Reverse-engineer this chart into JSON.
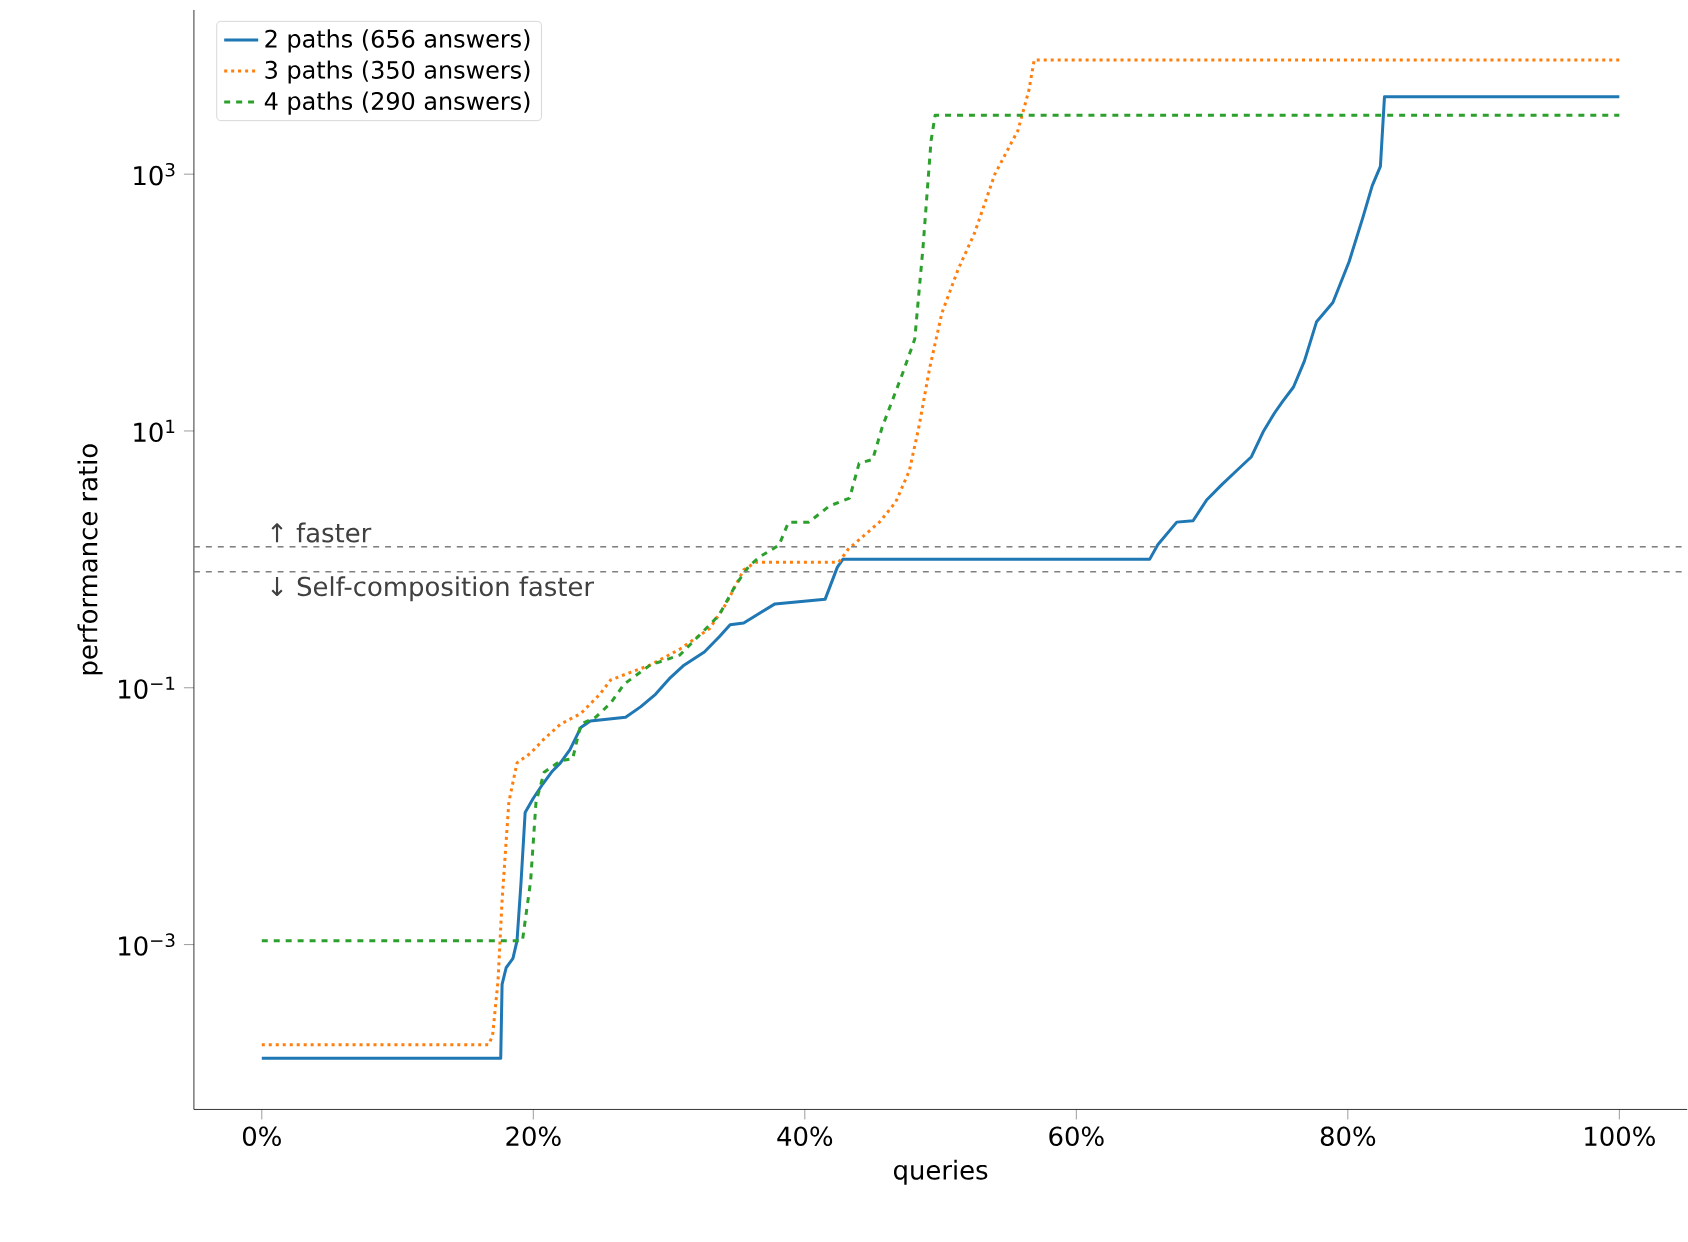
{
  "chart_data": {
    "type": "line",
    "xlabel": "queries",
    "ylabel": "performance ratio",
    "log": "y",
    "legend": "top left",
    "marker": "none",
    "xlim": [
      -5,
      105
    ],
    "ylim": [
      5.2e-05,
      19000
    ],
    "xticks": [
      {
        "value": 0,
        "label": "0%"
      },
      {
        "value": 20,
        "label": "20%"
      },
      {
        "value": 40,
        "label": "40%"
      },
      {
        "value": 60,
        "label": "60%"
      },
      {
        "value": 80,
        "label": "80%"
      },
      {
        "value": 100,
        "label": "100%"
      }
    ],
    "yticks": [
      {
        "value": 0.001,
        "label": "10$^{−3}$"
      },
      {
        "value": 0.1,
        "label": "10$^{−1}$"
      },
      {
        "value": 10,
        "label": "10$^{1}$"
      },
      {
        "value": 1000,
        "label": "10$^{3}$"
      }
    ],
    "ref_lines": [
      {
        "axis": "y",
        "value": 1.25,
        "label": "↑ faster",
        "color": "#808080",
        "line_style": "dashed"
      },
      {
        "axis": "y",
        "value": 0.8,
        "label": "↓ Self-composition faster",
        "color": "#808080",
        "line_style": "dashed"
      }
    ],
    "series": [
      {
        "name": "2 paths (656 answers)",
        "color": "#1f77b4",
        "line_style": "solid",
        "x": [
          0,
          17.6,
          17.7,
          18.0,
          18.5,
          18.8,
          19.1,
          19.4,
          20.0,
          20.7,
          21.4,
          22.0,
          22.7,
          23.5,
          24.2,
          24.9,
          26.8,
          27.9,
          29.0,
          30.1,
          31.1,
          32.6,
          33.7,
          34.5,
          35.5,
          37.8,
          41.5,
          42.4,
          42.8,
          65.4,
          66.0,
          67.4,
          68.6,
          69.6,
          70.7,
          71.8,
          72.9,
          73.8,
          74.6,
          75.2,
          76.0,
          76.8,
          77.7,
          78.9,
          80.1,
          81.1,
          81.8,
          82.4,
          82.7,
          100
        ],
        "values": [
          0.00013,
          0.00013,
          0.00049,
          0.00066,
          0.00078,
          0.00107,
          0.0031,
          0.0107,
          0.0138,
          0.0178,
          0.0224,
          0.026,
          0.033,
          0.049,
          0.055,
          0.056,
          0.059,
          0.071,
          0.089,
          0.12,
          0.15,
          0.19,
          0.25,
          0.31,
          0.32,
          0.45,
          0.49,
          0.87,
          1,
          1,
          1.3,
          1.95,
          2.0,
          2.9,
          3.8,
          4.9,
          6.3,
          10,
          13.8,
          17,
          22,
          35,
          71,
          100,
          209,
          457,
          813,
          1150,
          4000,
          4000
        ]
      },
      {
        "name": "3 paths (350 answers)",
        "color": "#ff7f0e",
        "line_style": "dotted",
        "x": [
          0,
          16.7,
          17.0,
          17.4,
          17.7,
          18.2,
          18.8,
          19.8,
          20.8,
          22.0,
          23.5,
          24.9,
          25.7,
          27.0,
          28.6,
          30.8,
          33.0,
          34.2,
          35.5,
          36.4,
          42.5,
          43.2,
          45.5,
          46.7,
          47.7,
          48.4,
          49.2,
          50.1,
          51.3,
          52.5,
          54.0,
          55.7,
          56.5,
          56.9,
          100
        ],
        "values": [
          0.000166,
          0.000166,
          0.000195,
          0.00052,
          0.0022,
          0.0129,
          0.026,
          0.031,
          0.04,
          0.052,
          0.063,
          0.089,
          0.115,
          0.13,
          0.15,
          0.2,
          0.29,
          0.45,
          0.83,
          0.95,
          0.95,
          1.2,
          1.95,
          2.8,
          4.9,
          10.7,
          31,
          83,
          182,
          347,
          1000,
          2190,
          4470,
          7760,
          7760
        ]
      },
      {
        "name": "4 paths (290 answers)",
        "color": "#2ca02c",
        "line_style": "dashed",
        "x": [
          0,
          19.2,
          19.8,
          20.2,
          20.8,
          22.0,
          22.9,
          23.5,
          24.6,
          25.7,
          26.7,
          28.6,
          30.8,
          32.3,
          33.7,
          34.9,
          35.9,
          36.7,
          38.1,
          38.8,
          40.3,
          41.8,
          43.3,
          44.0,
          45.0,
          45.7,
          47.2,
          48.1,
          48.7,
          49.3,
          49.6,
          100
        ],
        "values": [
          0.00107,
          0.00107,
          0.0031,
          0.0129,
          0.022,
          0.027,
          0.028,
          0.052,
          0.059,
          0.076,
          0.107,
          0.15,
          0.18,
          0.26,
          0.37,
          0.63,
          0.89,
          1.05,
          1.29,
          1.95,
          1.95,
          2.6,
          3.0,
          5.6,
          6.0,
          10.7,
          28,
          52,
          263,
          1820,
          2880,
          2880
        ]
      }
    ]
  }
}
